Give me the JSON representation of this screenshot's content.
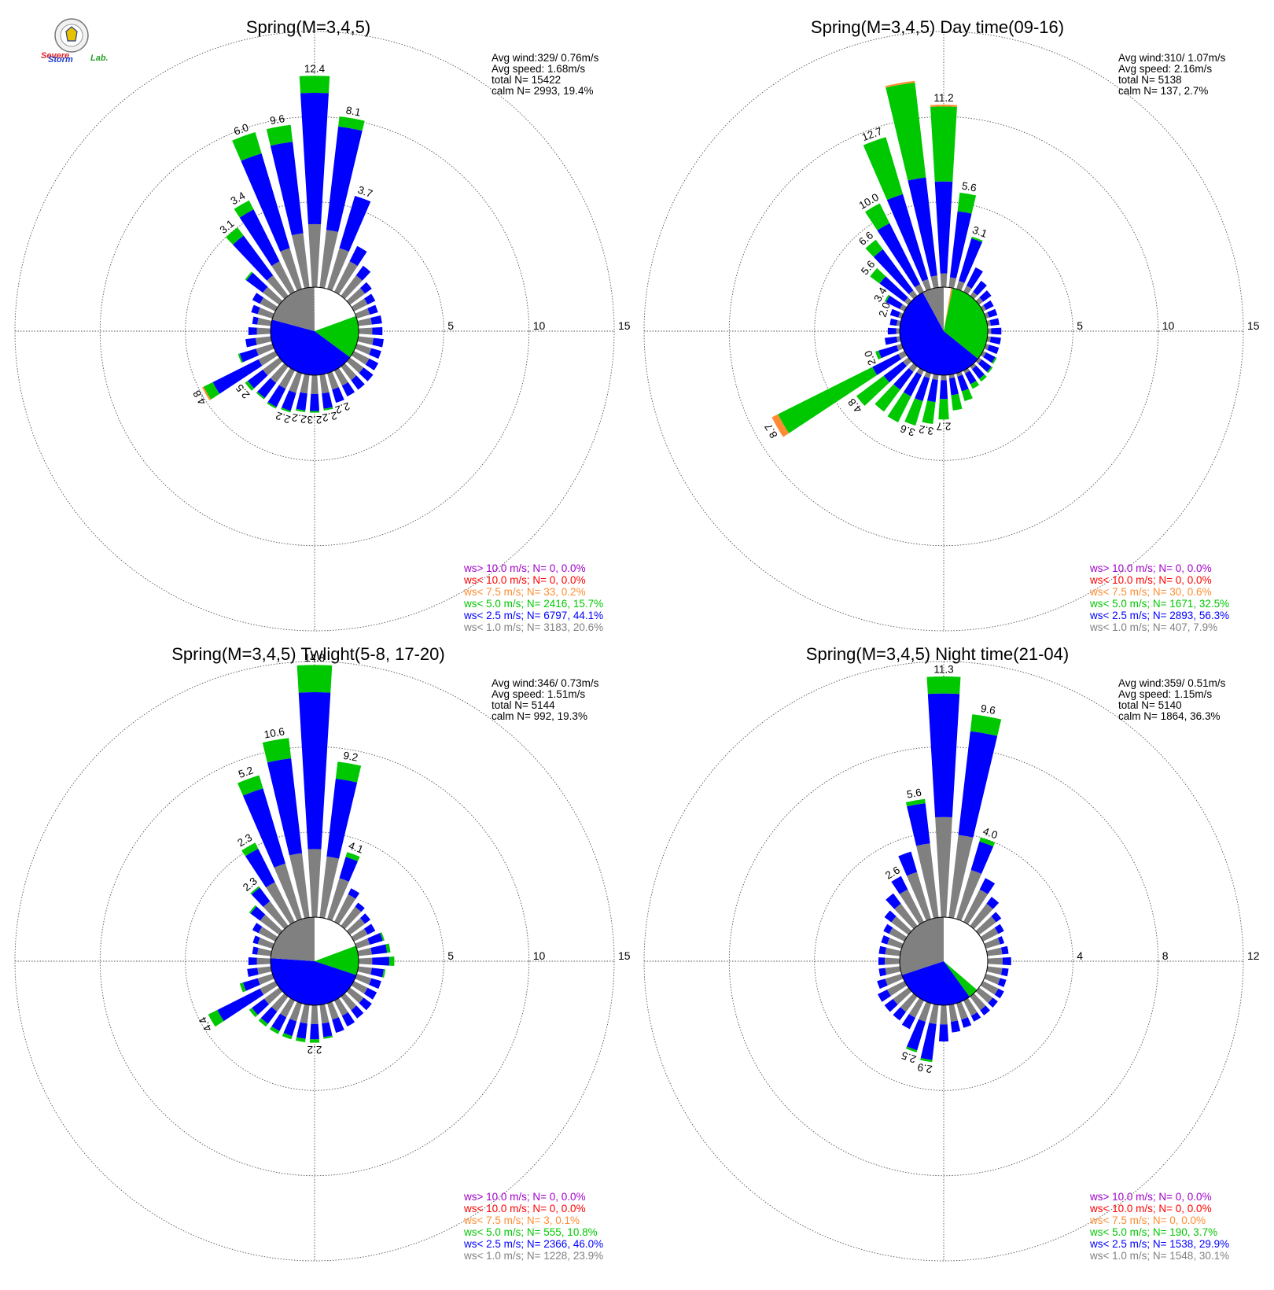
{
  "colors": {
    "calm_fill": "#ffffff",
    "ws_lt_1": "#808080",
    "ws_lt_2_5": "#0000ff",
    "ws_lt_5": "#00c800",
    "ws_lt_7_5": "#ff8c32",
    "ws_lt_10": "#ff0000",
    "ws_gt_10": "#a000c8",
    "grid": "#555555"
  },
  "logo": {
    "line1": "Severe",
    "line2": "Storm",
    "line3": "Lab."
  },
  "chart_data": [
    {
      "type": "polar-bar",
      "title": "Spring(M=3,4,5)",
      "stats": [
        "Avg wind:329/ 0.76m/s",
        "Avg speed: 1.68m/s",
        "total N=       15422",
        "calm N=    2993,  19.4%"
      ],
      "ring_values": [
        5,
        10,
        15
      ],
      "rmax": 15,
      "calm_pct": 19.4,
      "directions_deg": [
        0,
        10,
        20,
        30,
        40,
        50,
        60,
        70,
        80,
        90,
        100,
        110,
        120,
        130,
        140,
        150,
        160,
        170,
        180,
        190,
        200,
        210,
        220,
        230,
        240,
        250,
        260,
        270,
        280,
        290,
        300,
        310,
        320,
        330,
        340,
        350
      ],
      "series": {
        "ws_lt_1": [
          3.7,
          3.4,
          2.5,
          2.0,
          1.5,
          1.1,
          0.9,
          0.8,
          0.8,
          0.8,
          0.9,
          0.9,
          1.0,
          1.0,
          1.0,
          1.0,
          1.0,
          1.1,
          1.1,
          1.1,
          1.2,
          1.2,
          1.2,
          1.2,
          1.1,
          1.0,
          0.9,
          0.8,
          0.8,
          0.9,
          1.0,
          1.2,
          1.5,
          2.0,
          2.5,
          3.2
        ],
        "ws_lt_2_5": [
          7.7,
          6.1,
          3.2,
          1.0,
          0.7,
          0.5,
          0.5,
          0.5,
          0.6,
          0.6,
          0.6,
          0.6,
          0.6,
          0.7,
          0.7,
          0.7,
          0.8,
          0.9,
          1.0,
          1.0,
          1.1,
          1.2,
          1.1,
          1.1,
          3.0,
          1.0,
          0.6,
          0.5,
          0.3,
          0.4,
          0.5,
          1.2,
          2.9,
          3.4,
          5.8,
          5.4
        ],
        "ws_lt_5": [
          1.0,
          0.6,
          0.0,
          0.0,
          0.0,
          0.0,
          0.0,
          0.0,
          0.0,
          0.0,
          0.0,
          0.0,
          0.0,
          0.0,
          0.0,
          0.0,
          0.0,
          0.1,
          0.1,
          0.1,
          0.1,
          0.1,
          0.1,
          0.2,
          0.6,
          0.1,
          0.0,
          0.0,
          0.0,
          0.0,
          0.0,
          0.1,
          0.6,
          0.6,
          1.3,
          1.0
        ],
        "ws_lt_7_5": [
          0,
          0,
          0,
          0,
          0,
          0,
          0,
          0,
          0,
          0,
          0,
          0,
          0,
          0,
          0,
          0,
          0,
          0,
          0,
          0,
          0,
          0,
          0,
          0,
          0.1,
          0,
          0,
          0,
          0,
          0,
          0,
          0,
          0,
          0,
          0,
          0
        ]
      },
      "labels": [
        {
          "dir": 0,
          "text": "12.4"
        },
        {
          "dir": 10,
          "text": "8.1"
        },
        {
          "dir": 20,
          "text": "3.7"
        },
        {
          "dir": 160,
          "text": "2.2"
        },
        {
          "dir": 170,
          "text": "2.2"
        },
        {
          "dir": 180,
          "text": "2.3"
        },
        {
          "dir": 190,
          "text": "2.2"
        },
        {
          "dir": 200,
          "text": "2.2"
        },
        {
          "dir": 230,
          "text": "2.5"
        },
        {
          "dir": 240,
          "text": "4.8"
        },
        {
          "dir": 320,
          "text": "3.1"
        },
        {
          "dir": 330,
          "text": "3.4"
        },
        {
          "dir": 340,
          "text": "6.0"
        },
        {
          "dir": 350,
          "text": "9.6"
        }
      ],
      "legend": [
        {
          "text": "ws> 10.0 m/s; N=     0,  0.0%",
          "color_key": "ws_gt_10"
        },
        {
          "text": "ws< 10.0 m/s; N=     0,  0.0%",
          "color_key": "ws_lt_10"
        },
        {
          "text": "ws<  7.5 m/s; N=    33,  0.2%",
          "color_key": "ws_lt_7_5"
        },
        {
          "text": "ws<  5.0 m/s; N=  2416, 15.7%",
          "color_key": "ws_lt_5"
        },
        {
          "text": "ws<  2.5 m/s; N=  6797, 44.1%",
          "color_key": "ws_lt_2_5"
        },
        {
          "text": "ws<  1.0 m/s; N=  3183, 20.6%",
          "color_key": "ws_lt_1"
        }
      ],
      "pie": [
        {
          "color_key": "calm_fill",
          "pct": 19.4
        },
        {
          "color_key": "ws_lt_5",
          "pct": 15.7
        },
        {
          "color_key": "ws_lt_2_5",
          "pct": 44.1
        },
        {
          "color_key": "ws_lt_1",
          "pct": 20.6
        }
      ]
    },
    {
      "type": "polar-bar",
      "title": "Spring(M=3,4,5) Day time(09-16)",
      "stats": [
        "Avg wind:310/ 1.07m/s",
        "Avg speed: 2.16m/s",
        "total N=        5138",
        "calm N=     137,   2.7%"
      ],
      "ring_values": [
        5,
        10,
        15
      ],
      "rmax": 15,
      "calm_pct": 2.7,
      "directions_deg": [
        0,
        10,
        20,
        30,
        40,
        50,
        60,
        70,
        80,
        90,
        100,
        110,
        120,
        130,
        140,
        150,
        160,
        170,
        180,
        190,
        200,
        210,
        220,
        230,
        240,
        250,
        260,
        270,
        280,
        290,
        300,
        310,
        320,
        330,
        340,
        350
      ],
      "series": {
        "ws_lt_1": [
          0.8,
          0.6,
          0.5,
          0.4,
          0.3,
          0.3,
          0.2,
          0.2,
          0.2,
          0.2,
          0.2,
          0.2,
          0.2,
          0.2,
          0.2,
          0.2,
          0.2,
          0.2,
          0.3,
          0.3,
          0.3,
          0.3,
          0.4,
          0.4,
          0.4,
          0.3,
          0.2,
          0.2,
          0.2,
          0.2,
          0.3,
          0.3,
          0.4,
          0.5,
          0.6,
          0.7
        ],
        "ws_lt_2_5": [
          5.4,
          3.9,
          2.6,
          1.2,
          0.8,
          0.6,
          0.5,
          0.5,
          0.5,
          0.6,
          0.6,
          0.6,
          0.6,
          0.7,
          0.7,
          0.7,
          0.9,
          1.0,
          1.1,
          1.3,
          1.4,
          1.4,
          1.3,
          1.4,
          1.7,
          1.1,
          0.7,
          0.5,
          0.4,
          0.5,
          0.9,
          1.8,
          3.0,
          4.0,
          5.2,
          5.8
        ],
        "ws_lt_5": [
          4.4,
          1.1,
          0.1,
          0.0,
          0.0,
          0.0,
          0.0,
          0.0,
          0.0,
          0.0,
          0.0,
          0.0,
          0.1,
          0.1,
          0.2,
          0.3,
          0.6,
          0.9,
          1.2,
          1.3,
          1.5,
          1.7,
          1.6,
          2.0,
          6.2,
          0.2,
          0.0,
          0.0,
          0.0,
          0.0,
          0.1,
          0.7,
          0.7,
          1.3,
          3.5,
          5.6
        ],
        "ws_lt_7_5": [
          0.1,
          0,
          0,
          0,
          0,
          0,
          0,
          0,
          0,
          0,
          0,
          0,
          0,
          0,
          0,
          0,
          0,
          0,
          0,
          0,
          0,
          0,
          0,
          0,
          0.4,
          0,
          0,
          0,
          0,
          0,
          0,
          0,
          0,
          0,
          0,
          0.1
        ]
      },
      "labels": [
        {
          "dir": 0,
          "text": "11.2"
        },
        {
          "dir": 10,
          "text": "5.6"
        },
        {
          "dir": 20,
          "text": "3.1"
        },
        {
          "dir": 180,
          "text": "2.7"
        },
        {
          "dir": 190,
          "text": "3.2"
        },
        {
          "dir": 200,
          "text": "3.6"
        },
        {
          "dir": 230,
          "text": "4.8"
        },
        {
          "dir": 240,
          "text": "8.7"
        },
        {
          "dir": 250,
          "text": "2.0"
        },
        {
          "dir": 290,
          "text": "2.0"
        },
        {
          "dir": 300,
          "text": "3.4"
        },
        {
          "dir": 310,
          "text": "5.6"
        },
        {
          "dir": 320,
          "text": "6.6"
        },
        {
          "dir": 330,
          "text": "10.0"
        },
        {
          "dir": 340,
          "text": "12.7"
        }
      ],
      "legend": [
        {
          "text": "ws> 10.0 m/s; N=     0,  0.0%",
          "color_key": "ws_gt_10"
        },
        {
          "text": "ws< 10.0 m/s; N=     0,  0.0%",
          "color_key": "ws_lt_10"
        },
        {
          "text": "ws<  7.5 m/s; N=    30,  0.6%",
          "color_key": "ws_lt_7_5"
        },
        {
          "text": "ws<  5.0 m/s; N=  1671, 32.5%",
          "color_key": "ws_lt_5"
        },
        {
          "text": "ws<  2.5 m/s; N=  2893, 56.3%",
          "color_key": "ws_lt_2_5"
        },
        {
          "text": "ws<  1.0 m/s; N=   407,  7.9%",
          "color_key": "ws_lt_1"
        }
      ],
      "pie": [
        {
          "color_key": "calm_fill",
          "pct": 2.7
        },
        {
          "color_key": "ws_lt_7_5",
          "pct": 0.6
        },
        {
          "color_key": "ws_lt_5",
          "pct": 32.5
        },
        {
          "color_key": "ws_lt_2_5",
          "pct": 56.3
        },
        {
          "color_key": "ws_lt_1",
          "pct": 7.9
        }
      ]
    },
    {
      "type": "polar-bar",
      "title": "Spring(M=3,4,5) Twlight(5-8, 17-20)",
      "stats": [
        "Avg wind:346/ 0.73m/s",
        "Avg speed: 1.51m/s",
        "total N=        5144",
        "calm N=     992,  19.3%"
      ],
      "ring_values": [
        5,
        10,
        15
      ],
      "rmax": 15,
      "calm_pct": 19.3,
      "directions_deg": [
        0,
        10,
        20,
        30,
        40,
        50,
        60,
        70,
        80,
        90,
        100,
        110,
        120,
        130,
        140,
        150,
        160,
        170,
        180,
        190,
        200,
        210,
        220,
        230,
        240,
        250,
        260,
        270,
        280,
        290,
        300,
        310,
        320,
        330,
        340,
        350
      ],
      "series": {
        "ws_lt_1": [
          4.0,
          3.6,
          2.5,
          1.8,
          1.4,
          1.1,
          0.9,
          0.8,
          0.8,
          0.8,
          0.8,
          0.9,
          0.9,
          1.0,
          1.0,
          1.0,
          1.0,
          1.1,
          1.1,
          1.1,
          1.1,
          1.1,
          1.1,
          1.1,
          1.0,
          0.9,
          0.8,
          0.8,
          0.8,
          0.9,
          1.1,
          1.4,
          1.8,
          2.6,
          3.4,
          3.8
        ],
        "ws_lt_2_5": [
          9.2,
          4.6,
          1.3,
          0.4,
          0.3,
          0.4,
          0.5,
          0.8,
          0.9,
          1.0,
          0.7,
          0.6,
          0.6,
          0.6,
          0.6,
          0.7,
          0.8,
          0.8,
          0.9,
          0.9,
          0.9,
          0.9,
          0.9,
          0.9,
          2.8,
          0.9,
          0.6,
          0.5,
          0.3,
          0.3,
          0.4,
          0.7,
          1.0,
          2.2,
          4.6,
          5.6
        ],
        "ws_lt_5": [
          1.6,
          1.0,
          0.3,
          0.0,
          0.0,
          0.0,
          0.0,
          0.1,
          0.2,
          0.3,
          0.1,
          0.0,
          0.0,
          0.0,
          0.0,
          0.0,
          0.0,
          0.1,
          0.2,
          0.2,
          0.2,
          0.2,
          0.2,
          0.2,
          0.6,
          0.2,
          0.0,
          0.0,
          0.0,
          0.0,
          0.0,
          0.1,
          0.1,
          0.4,
          0.8,
          1.2
        ]
      },
      "labels": [
        {
          "dir": 0,
          "text": "14.8"
        },
        {
          "dir": 10,
          "text": "9.2"
        },
        {
          "dir": 20,
          "text": "4.1"
        },
        {
          "dir": 180,
          "text": "2.2"
        },
        {
          "dir": 240,
          "text": "4.4"
        },
        {
          "dir": 320,
          "text": "2.3"
        },
        {
          "dir": 330,
          "text": "2.3"
        },
        {
          "dir": 340,
          "text": "5.2"
        },
        {
          "dir": 350,
          "text": "10.6"
        }
      ],
      "legend": [
        {
          "text": "ws> 10.0 m/s; N=     0,  0.0%",
          "color_key": "ws_gt_10"
        },
        {
          "text": "ws< 10.0 m/s; N=     0,  0.0%",
          "color_key": "ws_lt_10"
        },
        {
          "text": "ws<  7.5 m/s; N=     3,  0.1%",
          "color_key": "ws_lt_7_5"
        },
        {
          "text": "ws<  5.0 m/s; N=   555, 10.8%",
          "color_key": "ws_lt_5"
        },
        {
          "text": "ws<  2.5 m/s; N=  2366, 46.0%",
          "color_key": "ws_lt_2_5"
        },
        {
          "text": "ws<  1.0 m/s; N=  1228, 23.9%",
          "color_key": "ws_lt_1"
        }
      ],
      "pie": [
        {
          "color_key": "calm_fill",
          "pct": 19.3
        },
        {
          "color_key": "ws_lt_5",
          "pct": 10.8
        },
        {
          "color_key": "ws_lt_2_5",
          "pct": 46.0
        },
        {
          "color_key": "ws_lt_1",
          "pct": 23.9
        }
      ]
    },
    {
      "type": "polar-bar",
      "title": "Spring(M=3,4,5) Night time(21-04)",
      "stats": [
        "Avg wind:359/ 0.51m/s",
        "Avg speed: 1.15m/s",
        "total N=        5140",
        "calm N=    1864,  36.3%"
      ],
      "ring_values": [
        4,
        8,
        12
      ],
      "rmax": 12,
      "calm_pct": 36.3,
      "directions_deg": [
        0,
        10,
        20,
        30,
        40,
        50,
        60,
        70,
        80,
        90,
        100,
        110,
        120,
        130,
        140,
        150,
        160,
        170,
        180,
        190,
        200,
        210,
        220,
        230,
        240,
        250,
        260,
        270,
        280,
        290,
        300,
        310,
        320,
        330,
        340,
        350
      ],
      "series": {
        "ws_lt_1": [
          4.7,
          3.9,
          2.4,
          1.7,
          1.3,
          1.0,
          0.8,
          0.7,
          0.7,
          0.7,
          0.7,
          0.7,
          0.8,
          0.8,
          0.8,
          0.8,
          0.8,
          0.8,
          0.9,
          0.9,
          0.9,
          0.9,
          0.9,
          0.9,
          0.9,
          0.8,
          0.7,
          0.7,
          0.7,
          0.7,
          0.8,
          1.0,
          1.3,
          1.7,
          2.3,
          3.5
        ],
        "ws_lt_2_5": [
          5.8,
          4.9,
          1.4,
          0.6,
          0.4,
          0.3,
          0.3,
          0.2,
          0.3,
          0.4,
          0.3,
          0.3,
          0.3,
          0.3,
          0.3,
          0.3,
          0.4,
          0.5,
          0.8,
          1.7,
          1.4,
          0.6,
          0.5,
          0.5,
          0.5,
          0.4,
          0.3,
          0.3,
          0.3,
          0.3,
          0.3,
          0.4,
          0.6,
          0.7,
          1.0,
          1.9
        ],
        "ws_lt_5": [
          0.8,
          0.8,
          0.2,
          0.0,
          0.0,
          0.0,
          0.0,
          0.0,
          0.0,
          0.0,
          0.0,
          0.0,
          0.0,
          0.0,
          0.0,
          0.0,
          0.0,
          0.0,
          0.0,
          0.1,
          0.1,
          0.0,
          0.0,
          0.0,
          0.0,
          0.0,
          0.0,
          0.0,
          0.0,
          0.0,
          0.0,
          0.0,
          0.0,
          0.0,
          0.0,
          0.2
        ]
      },
      "labels": [
        {
          "dir": 0,
          "text": "11.3"
        },
        {
          "dir": 10,
          "text": "9.6"
        },
        {
          "dir": 20,
          "text": "4.0"
        },
        {
          "dir": 190,
          "text": "2.9"
        },
        {
          "dir": 200,
          "text": "2.5"
        },
        {
          "dir": 330,
          "text": "2.6"
        },
        {
          "dir": 350,
          "text": "5.6"
        }
      ],
      "legend": [
        {
          "text": "ws> 10.0 m/s; N=     0,  0.0%",
          "color_key": "ws_gt_10"
        },
        {
          "text": "ws< 10.0 m/s; N=     0,  0.0%",
          "color_key": "ws_lt_10"
        },
        {
          "text": "ws<  7.5 m/s; N=     0,  0.0%",
          "color_key": "ws_lt_7_5"
        },
        {
          "text": "ws<  5.0 m/s; N=   190,  3.7%",
          "color_key": "ws_lt_5"
        },
        {
          "text": "ws<  2.5 m/s; N=  1538, 29.9%",
          "color_key": "ws_lt_2_5"
        },
        {
          "text": "ws<  1.0 m/s; N=  1548, 30.1%",
          "color_key": "ws_lt_1"
        }
      ],
      "pie": [
        {
          "color_key": "calm_fill",
          "pct": 36.3
        },
        {
          "color_key": "ws_lt_5",
          "pct": 3.7
        },
        {
          "color_key": "ws_lt_2_5",
          "pct": 29.9
        },
        {
          "color_key": "ws_lt_1",
          "pct": 30.1
        }
      ]
    }
  ]
}
